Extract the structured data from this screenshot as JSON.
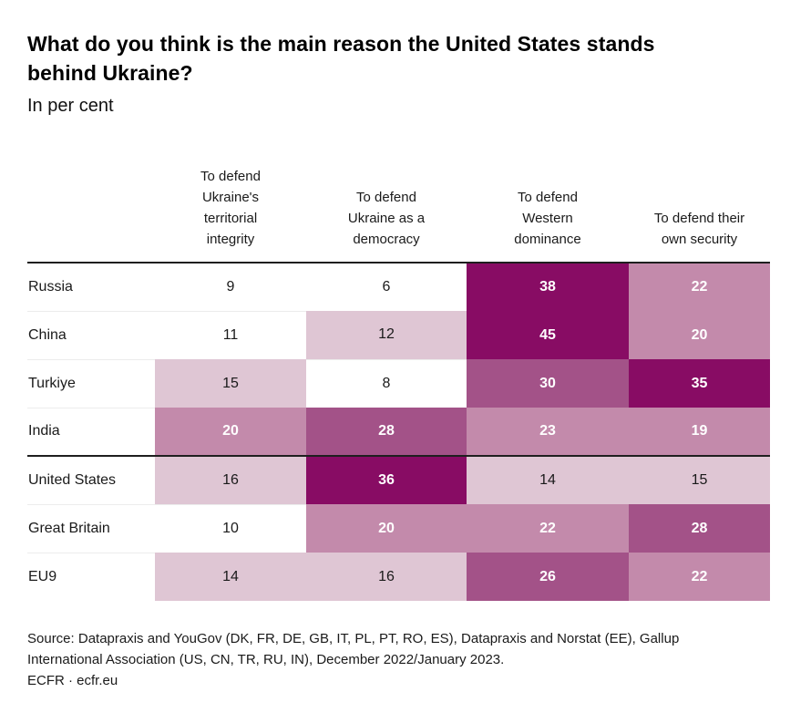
{
  "page": {
    "title": "What do you think is the main reason the United States stands\nbehind Ukraine?",
    "subtitle": "In per cent"
  },
  "table": {
    "column_headers": [
      "To defend\nUkraine's\nterritorial\nintegrity",
      "To defend\nUkraine as a\ndemocracy",
      "To defend\nWestern\ndominance",
      "To defend their\nown security"
    ]
  },
  "footer": {
    "source": "Source: Datapraxis and YouGov (DK, FR, DE, GB, IT, PL, PT, RO, ES), Datapraxis and Norstat (EE), Gallup\nInternational Association (US, CN, TR, RU, IN), December 2022/January 2023.",
    "credit": "ECFR · ecfr.eu"
  },
  "colors": {
    "band_white": "#ffffff",
    "band_light": "#dfc6d4",
    "band_medium": "#c38aab",
    "band_medium_dark": "#a35288",
    "band_dark": "#880c64",
    "rule_black": "#1f1f1f",
    "row_separator": "#ececec"
  },
  "chart_data": {
    "type": "heatmap",
    "title": "What do you think is the main reason the United States stands behind Ukraine?",
    "subtitle": "In per cent",
    "unit": "per cent",
    "columns": [
      "To defend Ukraine's territorial integrity",
      "To defend Ukraine as a democracy",
      "To defend Western dominance",
      "To defend their own security"
    ],
    "categories": [
      "Russia",
      "China",
      "Turkiye",
      "India",
      "United States",
      "Great Britain",
      "EU9"
    ],
    "values": [
      [
        9,
        6,
        38,
        22
      ],
      [
        11,
        12,
        45,
        20
      ],
      [
        15,
        8,
        30,
        35
      ],
      [
        20,
        28,
        23,
        19
      ],
      [
        16,
        36,
        14,
        15
      ],
      [
        10,
        20,
        22,
        28
      ],
      [
        14,
        16,
        26,
        22
      ]
    ],
    "color_scale": {
      "thresholds": [
        12,
        19,
        26,
        35
      ],
      "colors": [
        "#ffffff",
        "#dfc6d4",
        "#c38aab",
        "#a35288",
        "#880c64"
      ],
      "text_colors": [
        "#1a1a1a",
        "#1a1a1a",
        "#ffffff",
        "#ffffff",
        "#ffffff"
      ]
    },
    "group_separator_after_row": "India",
    "legend": "none",
    "grid": "off"
  }
}
